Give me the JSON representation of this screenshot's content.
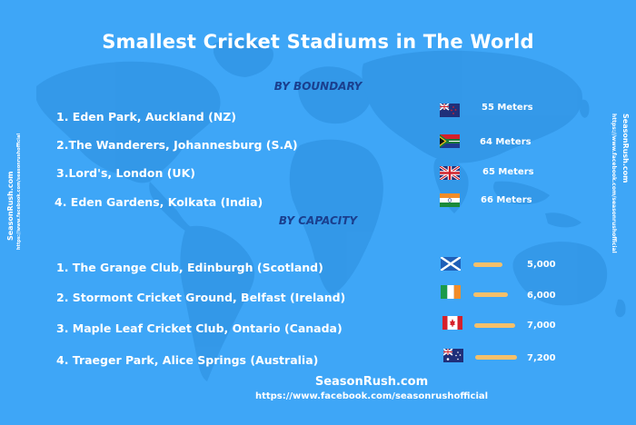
{
  "title": "Smallest Cricket Stadiums in The World",
  "sections": {
    "boundary_heading": "BY BOUNDARY",
    "capacity_heading": "BY CAPACITY"
  },
  "by_boundary": [
    {
      "label": "1. Eden Park, Auckland (NZ)",
      "value": "55 Meters",
      "flag": "new-zealand-flag"
    },
    {
      "label": "2.The Wanderers, Johannesburg (S.A)",
      "value": "64 Meters",
      "flag": "south-africa-flag"
    },
    {
      "label": "3.Lord's, London (UK)",
      "value": "65 Meters",
      "flag": "uk-flag"
    },
    {
      "label": "4. Eden Gardens, Kolkata (India)",
      "value": "66 Meters",
      "flag": "india-flag"
    }
  ],
  "by_capacity": [
    {
      "label": "1. The Grange Club, Edinburgh (Scotland)",
      "value": "5,000",
      "flag": "scotland-flag"
    },
    {
      "label": "2. Stormont Cricket Ground, Belfast (Ireland)",
      "value": "6,000",
      "flag": "ireland-flag"
    },
    {
      "label": "3. Maple Leaf Cricket Club, Ontario (Canada)",
      "value": "7,000",
      "flag": "canada-flag"
    },
    {
      "label": "4. Traeger Park, Alice Springs (Australia)",
      "value": "7,200",
      "flag": "australia-flag"
    }
  ],
  "side": {
    "brand": "SeasonRush.com",
    "url": "https://www.facebook.com/seasonrushofficial"
  },
  "footer": {
    "brand": "SeasonRush.com",
    "url": "https://www.facebook.com/seasonrushofficial"
  },
  "colors": {
    "background": "#3ea6f7",
    "map": "#2e8fe0",
    "heading": "#1a3f8e",
    "bar": "#f5c06a",
    "text": "#ffffff"
  }
}
